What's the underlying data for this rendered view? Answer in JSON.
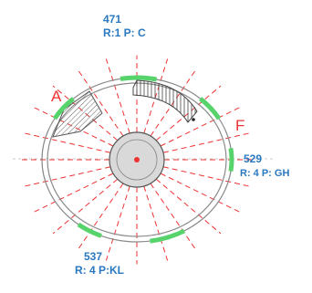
{
  "letters": {
    "a": "A",
    "f": "F"
  },
  "labels": {
    "top": {
      "number": "471",
      "detail": "R:1 P: C"
    },
    "right": {
      "number": "529",
      "detail": "R: 4 P: GH"
    },
    "bottom": {
      "number": "537",
      "detail": "R: 4 P:KL"
    }
  },
  "colors": {
    "radial_lines": "#ee3333",
    "letters": "#ee3333",
    "labels": "#2a78c0",
    "openings": "#56d36a",
    "walls": "#8a8a8a"
  }
}
